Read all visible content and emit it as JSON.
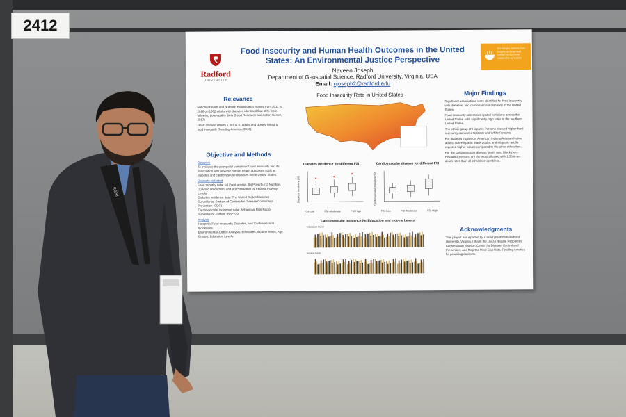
{
  "booth": {
    "number": "2412"
  },
  "poster": {
    "title": "Food Insecurity and Human Health Outcomes in the United States: An Environmental Justice Perspective",
    "author": "Naveen Joseph",
    "department": "Department of Geospatial Science, Radford University, Virginia, USA",
    "email_label": "Email:",
    "email": "njoseph2@radford.edu",
    "logo": {
      "name": "Radford",
      "sub": "UNIVERSITY",
      "icon": "radford-shield-icon"
    },
    "sdg_badge": {
      "text": "End hunger, achieve food security and improved nutrition and promote sustainable agriculture",
      "icon": "sdg-2-icon",
      "color": "#f2a41c"
    },
    "sections": {
      "relevance": {
        "heading": "Relevance",
        "items": [
          "National Health and Nutrition Examination Survey from 2011 to 2016 on 1682 adults with diabetes identified that 66% were following poor-quality diets (Food Research and Action Center, 2017)",
          "Heart disease affects 1 in 4 U.S. adults and closely linked to food insecurity (Feeding America, 2016)."
        ]
      },
      "objective": {
        "heading": "Objective and Methods",
        "objective_label": "Objective",
        "objective_text": "To evaluate the geospatial variation of food insecurity and its association with adverse human health outcomes such as diabetes and cardiovascular diseases in the United States.",
        "datasets_label": "Datasets collected",
        "datasets": [
          "Food security data: (a) Food access, (b) Poverty, (c) Nutrition, (d) Food production, and (e) Population by Federal Poverty Levels.",
          "Diabetes incidence data: The United States Diabetes Surveillance System of Centers for Disease Control and Prevention (CDC)",
          "Cardiovascular incidence data: Behavioral Risk Factor Surveillance System (BRFSS)"
        ],
        "analysis_label": "Analysis",
        "analysis": [
          "Hotspots: Food Insecurity, Diabetes, and Cardiovascular Incidences.",
          "Environmental Justice Analysis: Ethnicities, Income levels, Age Groups, Education Levels."
        ]
      },
      "map": {
        "title": "Food Insecurity Rate in United States"
      },
      "box1": {
        "title": "Diabetes Incidence for different FSI",
        "ylabel": "Diabetes Incidence (%)",
        "categories": [
          "FSI-Low",
          "FSI-Moderate",
          "FSI-High"
        ]
      },
      "box2": {
        "title": "Cardiovascular disease for different FSI",
        "ylabel": "Cardiovascular diseases (%)",
        "categories": [
          "FSI-Low",
          "FSI-Moderate",
          "FSI-High"
        ]
      },
      "bars": {
        "title": "Cardiovascular Incidence for Education and Income Levels",
        "label_top": "Education Level",
        "label_bottom": "Income Level"
      },
      "findings": {
        "heading": "Major Findings",
        "items": [
          "Significant associations were identified for food insecurity with diabetes, and cardiovascular diseases in the United States.",
          "Food insecurity rate shows spatial variations across the United States, with significantly high rates in the southern United States.",
          "The ethnic group of Hispanic Persons showed higher food insecurity compared to Black and White Persons.",
          "For diabetes incidence, American Indians/Alaskan Native adults, non-Hispanic Black adults, and Hispanic adults reported higher values compared to the other ethnicities.",
          "For the cardiovascular disease death rate, Black (non-Hispanic) Persons are the most affected with 1.35 times death rates than all ethnicities combined."
        ]
      },
      "acknowledgments": {
        "heading": "Acknowledgments",
        "text": "This project is supported by a seed grant from Radford University, Virginia. I thank the USDA Natural Resources Conservation Service, Center for Disease Control and Prevention, and Map the Meal Gap Data, Feeding America for providing datasets."
      }
    }
  },
  "lanyard": {
    "text": "ESRI"
  }
}
